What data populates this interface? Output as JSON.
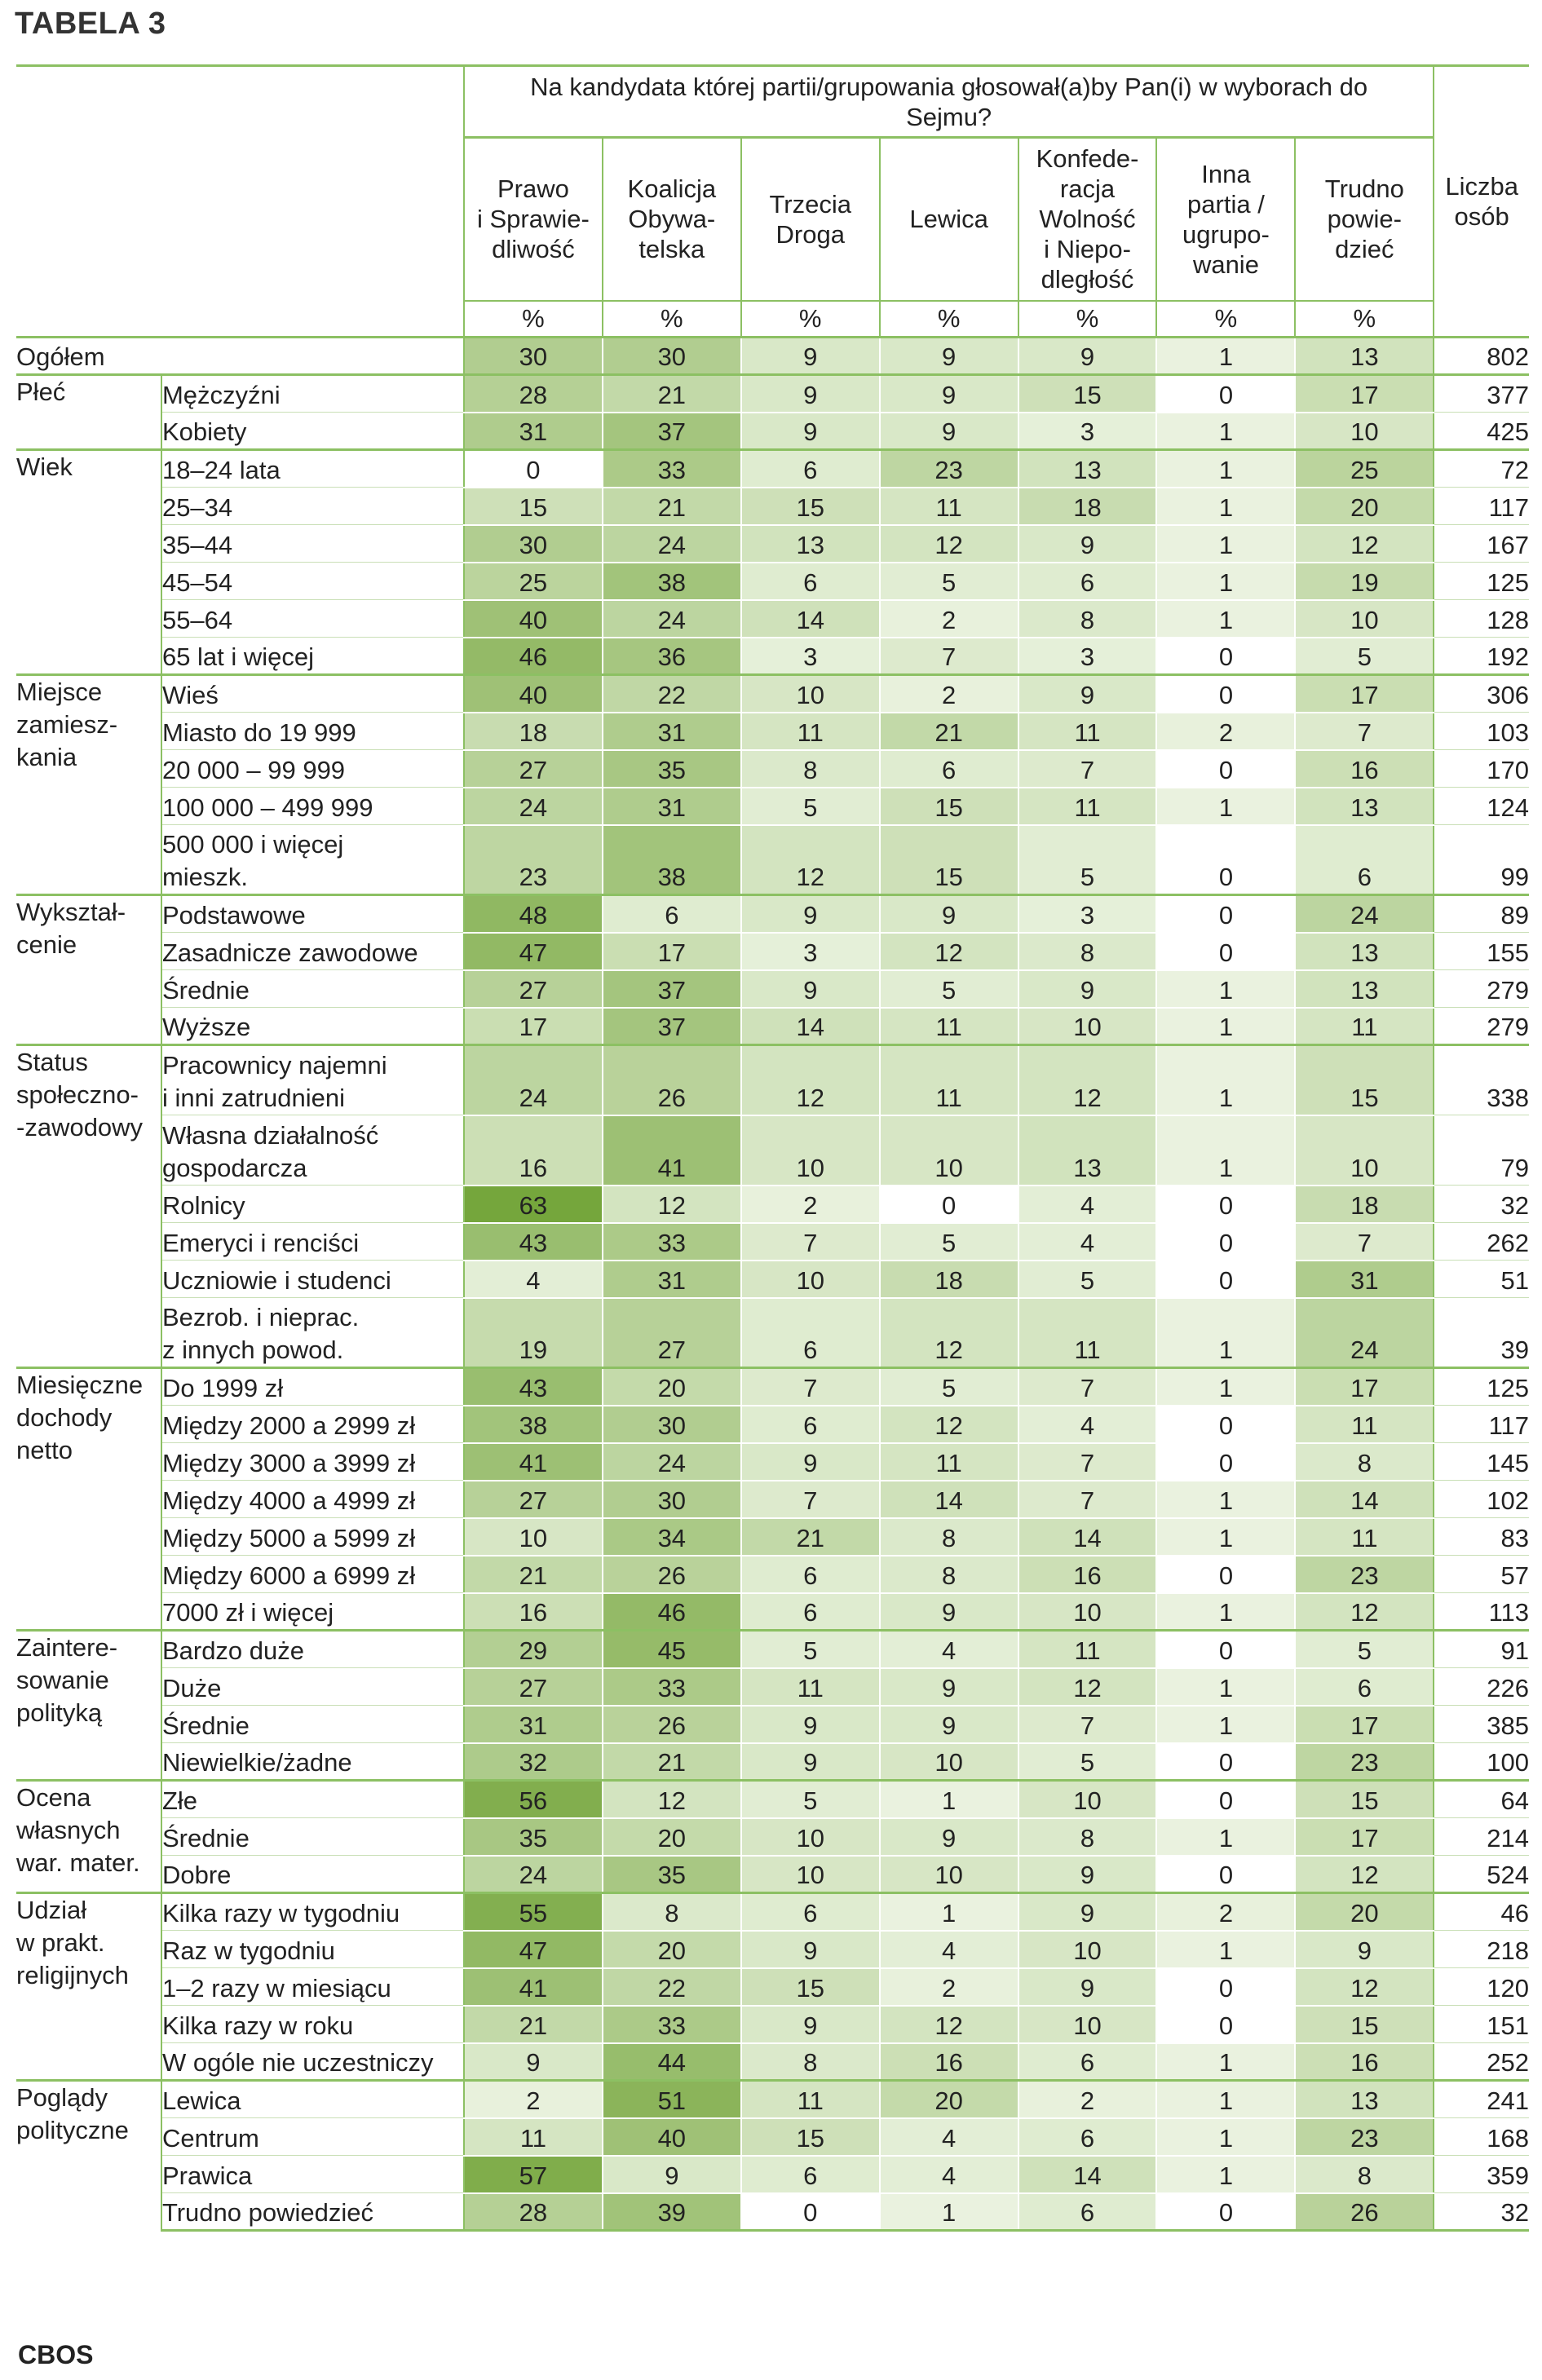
{
  "title": "TABELA 3",
  "footer": "CBOS",
  "question": "Na kandydata której partii/grupowania głosował(a)by Pan(i) w wyborach do Sejmu?",
  "columns": [
    {
      "label": "Prawo i Sprawie-dliwość",
      "lines": [
        "Prawo",
        "i Sprawie-",
        "dliwość"
      ]
    },
    {
      "label": "Koalicja Obywa-telska",
      "lines": [
        "Koalicja",
        "Obywa-",
        "telska"
      ]
    },
    {
      "label": "Trzecia Droga",
      "lines": [
        "Trzecia",
        "Droga"
      ]
    },
    {
      "label": "Lewica",
      "lines": [
        "Lewica"
      ]
    },
    {
      "label": "Konfede-racja Wolność i Niepo-dległość",
      "lines": [
        "Konfede-",
        "racja",
        "Wolność",
        "i Niepo-",
        "dległość"
      ]
    },
    {
      "label": "Inna partia / ugrupo-wanie",
      "lines": [
        "Inna",
        "partia /",
        "ugrupo-",
        "wanie"
      ]
    },
    {
      "label": "Trudno powie-dzieć",
      "lines": [
        "Trudno",
        "powie-",
        "dzieć"
      ]
    }
  ],
  "count_header_lines": [
    "Liczba",
    "osób"
  ],
  "unit": "%",
  "colors": {
    "rule": "#8cc063",
    "heat_low": "#ffffff",
    "heat_high": "#75a63c",
    "text": "#222222"
  },
  "groups": [
    {
      "name": [
        "Ogółem"
      ],
      "total": true,
      "rows": [
        {
          "label": [],
          "values": [
            30,
            30,
            9,
            9,
            9,
            1,
            13
          ],
          "n": 802
        }
      ]
    },
    {
      "name": [
        "Płeć"
      ],
      "rows": [
        {
          "label": [
            "Mężczyźni"
          ],
          "values": [
            28,
            21,
            9,
            9,
            15,
            0,
            17
          ],
          "n": 377
        },
        {
          "label": [
            "Kobiety"
          ],
          "values": [
            31,
            37,
            9,
            9,
            3,
            1,
            10
          ],
          "n": 425
        }
      ]
    },
    {
      "name": [
        "Wiek"
      ],
      "rows": [
        {
          "label": [
            "18–24 lata"
          ],
          "values": [
            0,
            33,
            6,
            23,
            13,
            1,
            25
          ],
          "n": 72
        },
        {
          "label": [
            "25–34"
          ],
          "values": [
            15,
            21,
            15,
            11,
            18,
            1,
            20
          ],
          "n": 117
        },
        {
          "label": [
            "35–44"
          ],
          "values": [
            30,
            24,
            13,
            12,
            9,
            1,
            12
          ],
          "n": 167
        },
        {
          "label": [
            "45–54"
          ],
          "values": [
            25,
            38,
            6,
            5,
            6,
            1,
            19
          ],
          "n": 125
        },
        {
          "label": [
            "55–64"
          ],
          "values": [
            40,
            24,
            14,
            2,
            8,
            1,
            10
          ],
          "n": 128
        },
        {
          "label": [
            "65 lat i więcej"
          ],
          "values": [
            46,
            36,
            3,
            7,
            3,
            0,
            5
          ],
          "n": 192
        }
      ]
    },
    {
      "name": [
        "Miejsce",
        "zamiesz-",
        "kania"
      ],
      "rows": [
        {
          "label": [
            "Wieś"
          ],
          "values": [
            40,
            22,
            10,
            2,
            9,
            0,
            17
          ],
          "n": 306
        },
        {
          "label": [
            "Miasto do 19 999"
          ],
          "values": [
            18,
            31,
            11,
            21,
            11,
            2,
            7
          ],
          "n": 103
        },
        {
          "label": [
            "20 000 – 99 999"
          ],
          "values": [
            27,
            35,
            8,
            6,
            7,
            0,
            16
          ],
          "n": 170
        },
        {
          "label": [
            "100 000 – 499 999"
          ],
          "values": [
            24,
            31,
            5,
            15,
            11,
            1,
            13
          ],
          "n": 124
        },
        {
          "label": [
            "500 000 i więcej",
            "mieszk."
          ],
          "values": [
            23,
            38,
            12,
            15,
            5,
            0,
            6
          ],
          "n": 99
        }
      ]
    },
    {
      "name": [
        "Wykształ-",
        "cenie"
      ],
      "rows": [
        {
          "label": [
            "Podstawowe"
          ],
          "values": [
            48,
            6,
            9,
            9,
            3,
            0,
            24
          ],
          "n": 89
        },
        {
          "label": [
            "Zasadnicze zawodowe"
          ],
          "values": [
            47,
            17,
            3,
            12,
            8,
            0,
            13
          ],
          "n": 155
        },
        {
          "label": [
            "Średnie"
          ],
          "values": [
            27,
            37,
            9,
            5,
            9,
            1,
            13
          ],
          "n": 279
        },
        {
          "label": [
            "Wyższe"
          ],
          "values": [
            17,
            37,
            14,
            11,
            10,
            1,
            11
          ],
          "n": 279
        }
      ]
    },
    {
      "name": [
        "Status",
        "społeczno-",
        "-zawodowy"
      ],
      "rows": [
        {
          "label": [
            "Pracownicy najemni",
            "i inni zatrudnieni"
          ],
          "values": [
            24,
            26,
            12,
            11,
            12,
            1,
            15
          ],
          "n": 338
        },
        {
          "label": [
            "Własna działalność",
            "gospodarcza"
          ],
          "values": [
            16,
            41,
            10,
            10,
            13,
            1,
            10
          ],
          "n": 79
        },
        {
          "label": [
            "Rolnicy"
          ],
          "values": [
            63,
            12,
            2,
            0,
            4,
            0,
            18
          ],
          "n": 32
        },
        {
          "label": [
            "Emeryci i renciści"
          ],
          "values": [
            43,
            33,
            7,
            5,
            4,
            0,
            7
          ],
          "n": 262
        },
        {
          "label": [
            "Uczniowie i studenci"
          ],
          "values": [
            4,
            31,
            10,
            18,
            5,
            0,
            31
          ],
          "n": 51
        },
        {
          "label": [
            "Bezrob. i nieprac.",
            "z innych powod."
          ],
          "values": [
            19,
            27,
            6,
            12,
            11,
            1,
            24
          ],
          "n": 39
        }
      ]
    },
    {
      "name": [
        "Miesięczne",
        "dochody",
        "netto"
      ],
      "rows": [
        {
          "label": [
            "Do 1999 zł"
          ],
          "values": [
            43,
            20,
            7,
            5,
            7,
            1,
            17
          ],
          "n": 125
        },
        {
          "label": [
            "Między 2000 a 2999 zł"
          ],
          "values": [
            38,
            30,
            6,
            12,
            4,
            0,
            11
          ],
          "n": 117
        },
        {
          "label": [
            "Między 3000 a 3999 zł"
          ],
          "values": [
            41,
            24,
            9,
            11,
            7,
            0,
            8
          ],
          "n": 145
        },
        {
          "label": [
            "Między 4000 a 4999 zł"
          ],
          "values": [
            27,
            30,
            7,
            14,
            7,
            1,
            14
          ],
          "n": 102
        },
        {
          "label": [
            "Między 5000 a 5999 zł"
          ],
          "values": [
            10,
            34,
            21,
            8,
            14,
            1,
            11
          ],
          "n": 83
        },
        {
          "label": [
            "Między 6000 a 6999 zł"
          ],
          "values": [
            21,
            26,
            6,
            8,
            16,
            0,
            23
          ],
          "n": 57
        },
        {
          "label": [
            "7000 zł i więcej"
          ],
          "values": [
            16,
            46,
            6,
            9,
            10,
            1,
            12
          ],
          "n": 113
        }
      ]
    },
    {
      "name": [
        "Zaintere-",
        "sowanie",
        "polityką"
      ],
      "rows": [
        {
          "label": [
            "Bardzo duże"
          ],
          "values": [
            29,
            45,
            5,
            4,
            11,
            0,
            5
          ],
          "n": 91
        },
        {
          "label": [
            "Duże"
          ],
          "values": [
            27,
            33,
            11,
            9,
            12,
            1,
            6
          ],
          "n": 226
        },
        {
          "label": [
            "Średnie"
          ],
          "values": [
            31,
            26,
            9,
            9,
            7,
            1,
            17
          ],
          "n": 385
        },
        {
          "label": [
            "Niewielkie/żadne"
          ],
          "values": [
            32,
            21,
            9,
            10,
            5,
            0,
            23
          ],
          "n": 100
        }
      ]
    },
    {
      "name": [
        "Ocena",
        "własnych",
        "war. mater."
      ],
      "rows": [
        {
          "label": [
            "Złe"
          ],
          "values": [
            56,
            12,
            5,
            1,
            10,
            0,
            15
          ],
          "n": 64
        },
        {
          "label": [
            "Średnie"
          ],
          "values": [
            35,
            20,
            10,
            9,
            8,
            1,
            17
          ],
          "n": 214
        },
        {
          "label": [
            "Dobre"
          ],
          "values": [
            24,
            35,
            10,
            10,
            9,
            0,
            12
          ],
          "n": 524
        }
      ]
    },
    {
      "name": [
        "Udział",
        "w prakt.",
        "religijnych"
      ],
      "rows": [
        {
          "label": [
            "Kilka razy w tygodniu"
          ],
          "values": [
            55,
            8,
            6,
            1,
            9,
            2,
            20
          ],
          "n": 46
        },
        {
          "label": [
            "Raz w tygodniu"
          ],
          "values": [
            47,
            20,
            9,
            4,
            10,
            1,
            9
          ],
          "n": 218
        },
        {
          "label": [
            "1–2 razy w miesiącu"
          ],
          "values": [
            41,
            22,
            15,
            2,
            9,
            0,
            12
          ],
          "n": 120
        },
        {
          "label": [
            "Kilka razy w roku"
          ],
          "values": [
            21,
            33,
            9,
            12,
            10,
            0,
            15
          ],
          "n": 151
        },
        {
          "label": [
            "W ogóle nie uczestniczy"
          ],
          "values": [
            9,
            44,
            8,
            16,
            6,
            1,
            16
          ],
          "n": 252
        }
      ]
    },
    {
      "name": [
        "Poglądy",
        "polityczne"
      ],
      "rows": [
        {
          "label": [
            "Lewica"
          ],
          "values": [
            2,
            51,
            11,
            20,
            2,
            1,
            13
          ],
          "n": 241
        },
        {
          "label": [
            "Centrum"
          ],
          "values": [
            11,
            40,
            15,
            4,
            6,
            1,
            23
          ],
          "n": 168
        },
        {
          "label": [
            "Prawica"
          ],
          "values": [
            57,
            9,
            6,
            4,
            14,
            1,
            8
          ],
          "n": 359
        },
        {
          "label": [
            "Trudno powiedzieć"
          ],
          "values": [
            28,
            39,
            0,
            1,
            6,
            0,
            26
          ],
          "n": 32
        }
      ]
    }
  ]
}
